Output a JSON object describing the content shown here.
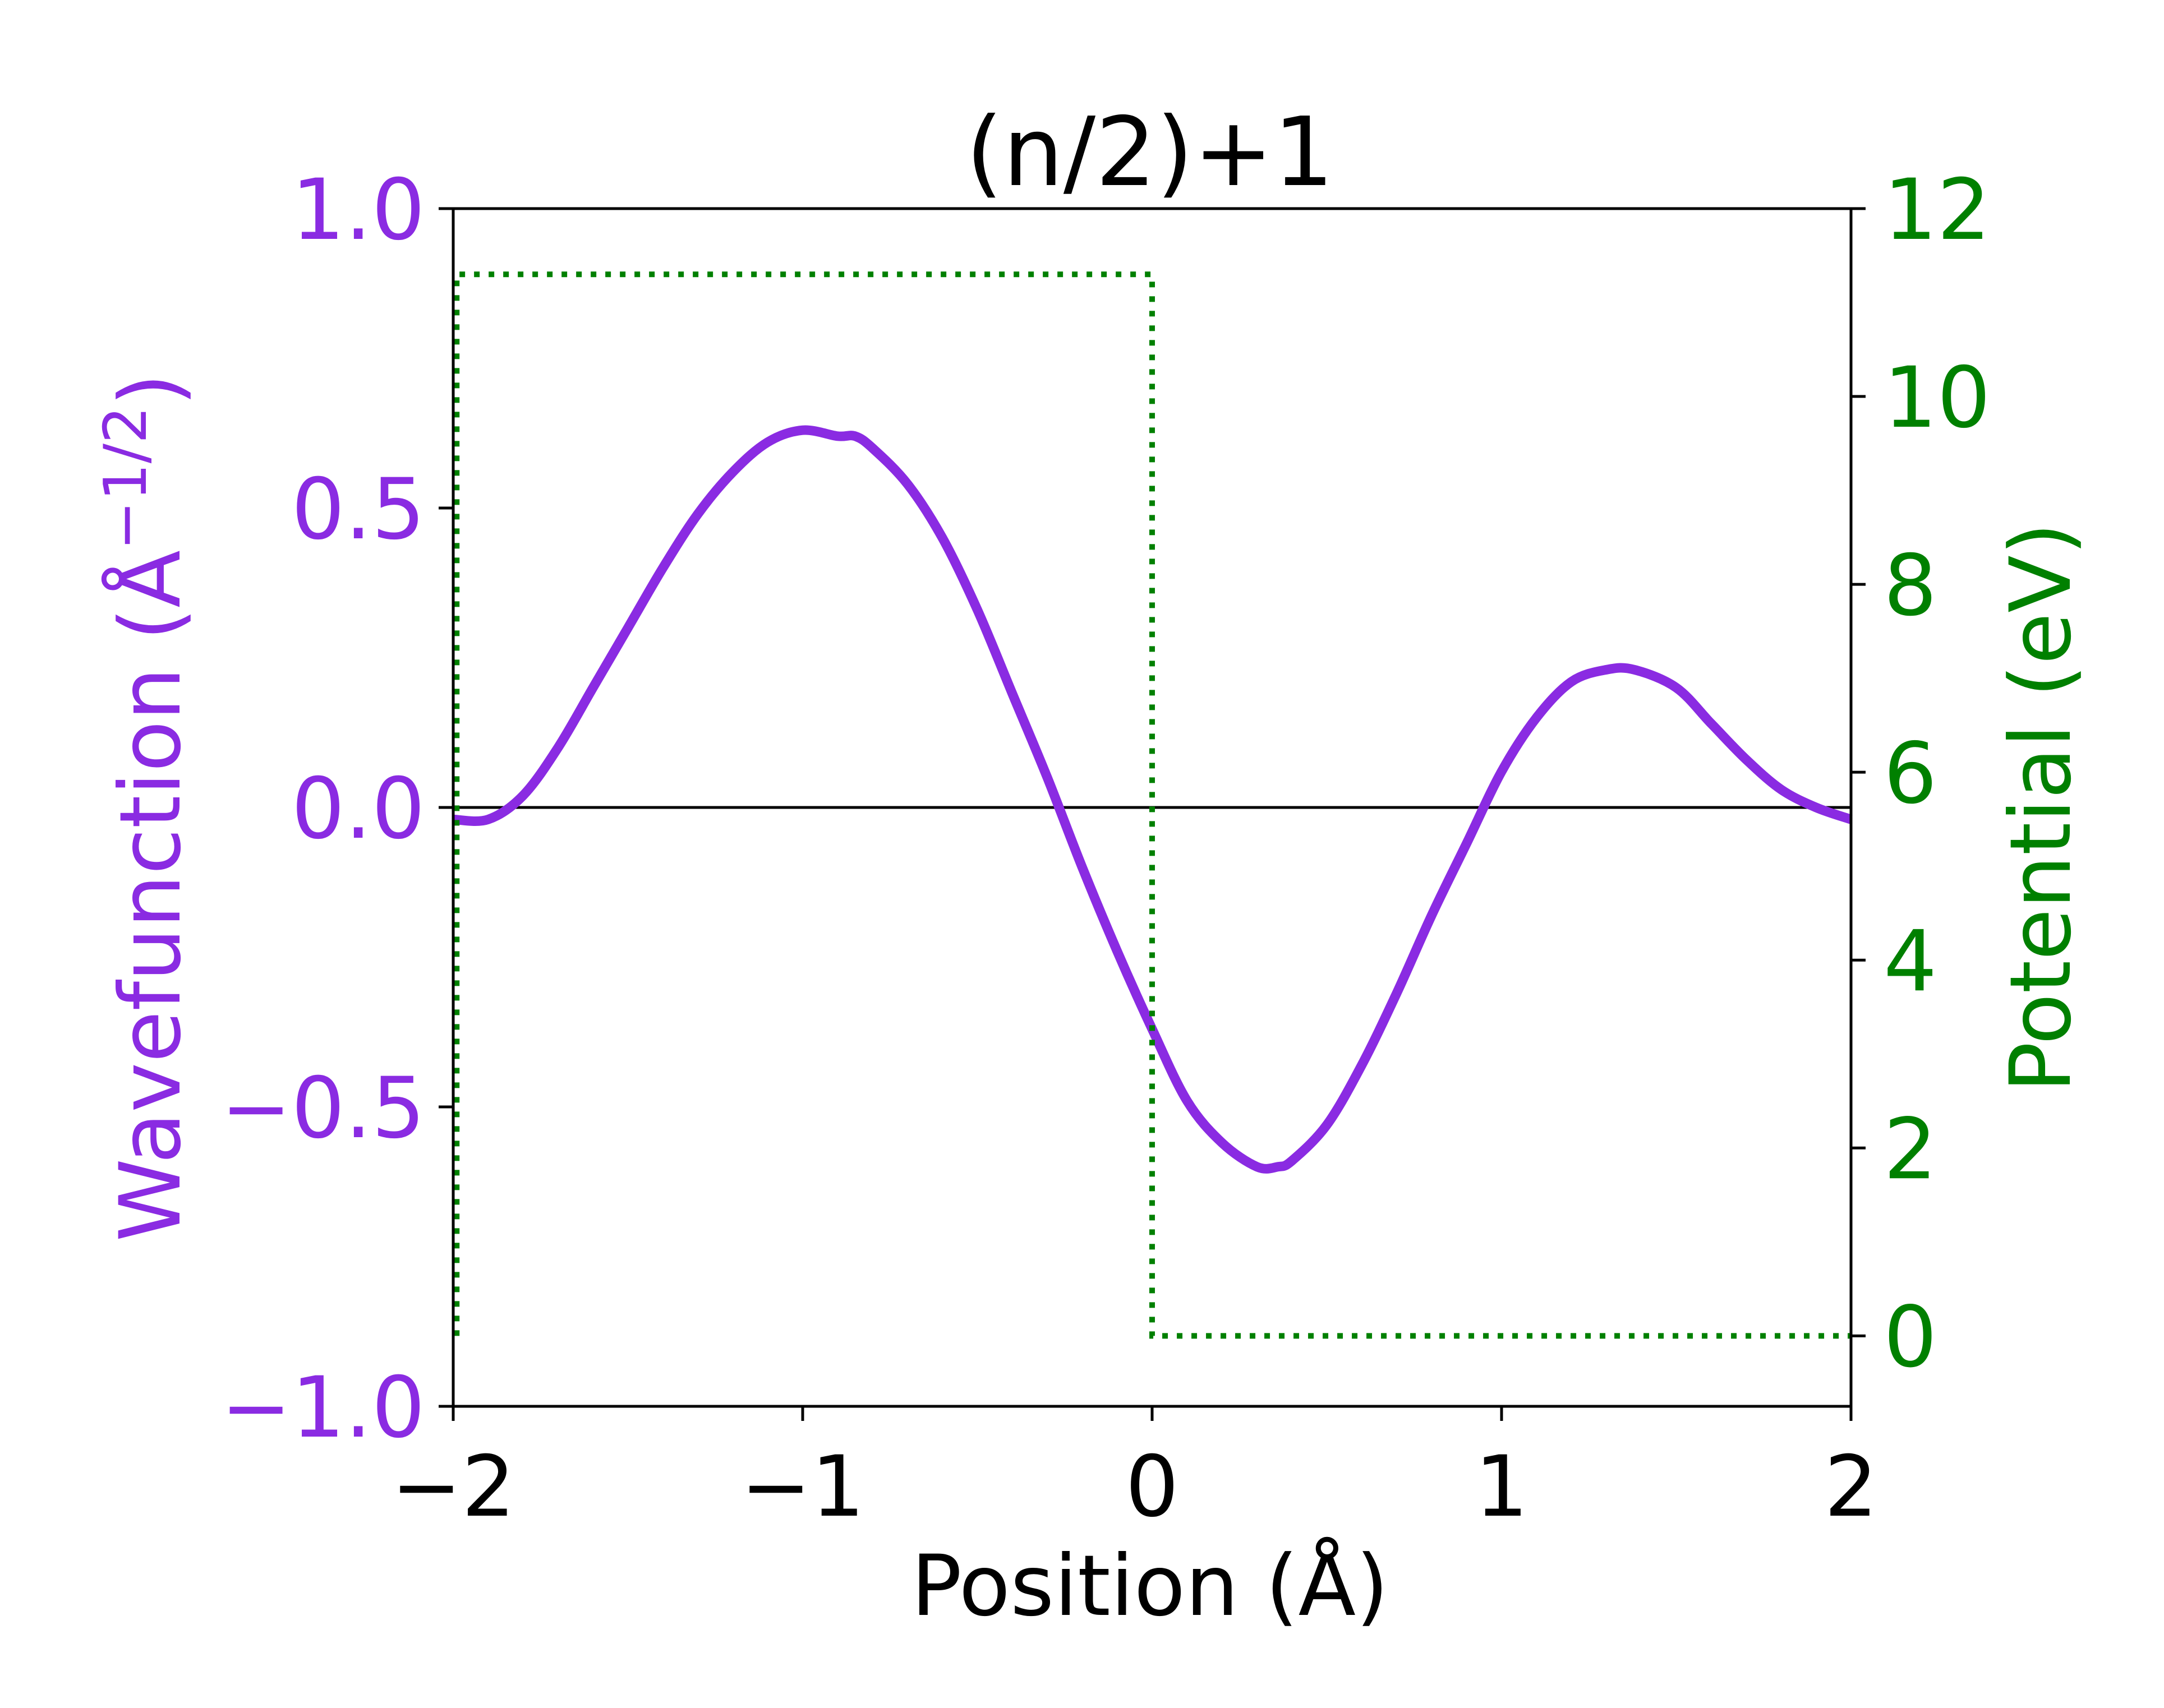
{
  "chart_data": {
    "type": "line",
    "title": "(n/2)+1",
    "xlabel": "Position (Å)",
    "ylabel_left": "Wavefunction (Å",
    "ylabel_left_sup": "−1/2",
    "ylabel_left_close": ")",
    "ylabel_right": "Potential (eV)",
    "xlim": [
      -2,
      2
    ],
    "ylim_left": [
      -1.0,
      1.0
    ],
    "ylim_right": [
      -0.75,
      12
    ],
    "x_ticks": [
      -2,
      -1,
      0,
      1,
      2
    ],
    "x_tick_labels": [
      "−2",
      "−1",
      "0",
      "1",
      "2"
    ],
    "y_left_ticks": [
      -1.0,
      -0.5,
      0.0,
      0.5,
      1.0
    ],
    "y_left_tick_labels": [
      "−1.0",
      "−0.5",
      "0.0",
      "0.5",
      "1.0"
    ],
    "y_right_ticks": [
      0,
      2,
      4,
      6,
      8,
      10,
      12
    ],
    "y_right_tick_labels": [
      "0",
      "2",
      "4",
      "6",
      "8",
      "10",
      "12"
    ],
    "grid": false,
    "reference_line": {
      "axis": "left",
      "y": 0,
      "color": "#000000"
    },
    "series": [
      {
        "axis": "left",
        "style": "solid",
        "color": "#8a2be2",
        "x": [
          -2.0,
          -1.9,
          -1.8,
          -1.7,
          -1.6,
          -1.5,
          -1.4,
          -1.3,
          -1.2,
          -1.1,
          -1.0,
          -0.9,
          -0.85,
          -0.8,
          -0.7,
          -0.6,
          -0.5,
          -0.4,
          -0.3,
          -0.2,
          -0.1,
          0.0,
          0.1,
          0.2,
          0.3,
          0.36,
          0.4,
          0.5,
          0.6,
          0.7,
          0.8,
          0.9,
          1.0,
          1.1,
          1.2,
          1.3,
          1.38,
          1.5,
          1.6,
          1.7,
          1.8,
          1.9,
          2.0
        ],
        "y": [
          -0.02,
          -0.02,
          0.02,
          0.1,
          0.2,
          0.3,
          0.4,
          0.49,
          0.56,
          0.61,
          0.63,
          0.62,
          0.62,
          0.6,
          0.54,
          0.45,
          0.33,
          0.19,
          0.05,
          -0.1,
          -0.24,
          -0.37,
          -0.49,
          -0.56,
          -0.6,
          -0.6,
          -0.59,
          -0.53,
          -0.43,
          -0.31,
          -0.18,
          -0.06,
          0.06,
          0.15,
          0.21,
          0.23,
          0.23,
          0.2,
          0.14,
          0.08,
          0.03,
          0.0,
          -0.02
        ]
      },
      {
        "axis": "right",
        "style": "dotted",
        "color": "#008000",
        "x": [
          -1.99,
          -1.99,
          0.0,
          0.0,
          2.0
        ],
        "y": [
          0,
          11.3,
          11.3,
          0,
          0
        ]
      }
    ],
    "colors": {
      "left_axis": "#8a2be2",
      "right_axis": "#008000",
      "frame": "#000000"
    }
  }
}
